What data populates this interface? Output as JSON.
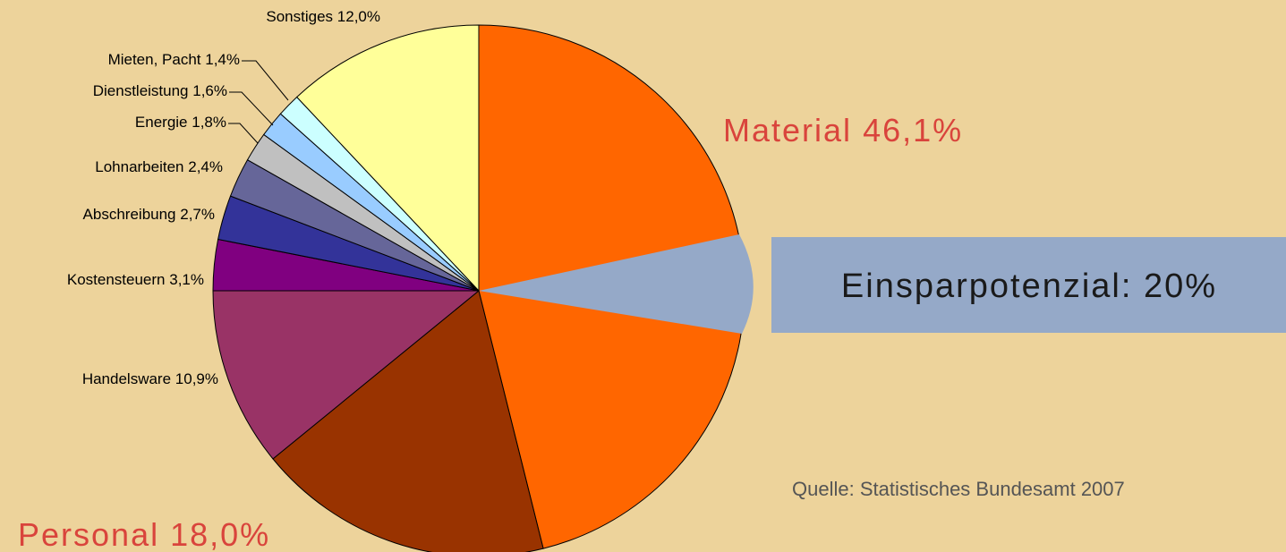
{
  "chart_data": {
    "type": "pie",
    "categories": [
      "Material",
      "Personal",
      "Handelsware",
      "Kostensteuern",
      "Abschreibung",
      "Lohnarbeiten",
      "Energie",
      "Dienstleistung",
      "Mieten, Pacht",
      "Sonstiges"
    ],
    "values": [
      46.1,
      18.0,
      10.9,
      3.1,
      2.7,
      2.4,
      1.8,
      1.6,
      1.4,
      12.0
    ],
    "value_labels": [
      "46,1%",
      "18,0%",
      "10,9%",
      "3,1%",
      "2,7%",
      "2,4%",
      "1,8%",
      "1,6%",
      "1,4%",
      "12,0%"
    ],
    "colors": [
      "#FF6600",
      "#993300",
      "#993366",
      "#800080",
      "#333399",
      "#666699",
      "#C0C0C0",
      "#99CCFF",
      "#CCFFFF",
      "#FFFF99"
    ],
    "annotations": [
      "Einsparpotenzial: 20%",
      "Quelle: Statistisches Bundesamt 2007"
    ]
  }
}
